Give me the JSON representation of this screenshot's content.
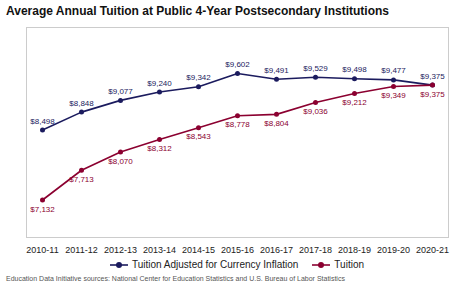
{
  "chart_data": {
    "type": "line",
    "title": "Average Annual Tuition at Public 4-Year Postsecondary Institutions",
    "categories": [
      "2010-11",
      "2011-12",
      "2012-13",
      "2013-14",
      "2014-15",
      "2015-16",
      "2016-17",
      "2017-18",
      "2018-19",
      "2019-20",
      "2020-21"
    ],
    "series": [
      {
        "name": "Tuition Adjusted for Currency Inflation",
        "color": "#1b1b5e",
        "values": [
          8498,
          8848,
          9077,
          9240,
          9342,
          9602,
          9491,
          9529,
          9498,
          9477,
          9375
        ],
        "value_labels": [
          "$8,498",
          "$8,848",
          "$9,077",
          "$9,240",
          "$9,342",
          "$9,602",
          "$9,491",
          "$9,529",
          "$9,498",
          "$9,477",
          "$9,375"
        ]
      },
      {
        "name": "Tuition",
        "color": "#8b0030",
        "values": [
          7132,
          7713,
          8070,
          8312,
          8543,
          8778,
          8804,
          9036,
          9212,
          9349,
          9375
        ],
        "value_labels": [
          "$7,132",
          "$7,713",
          "$8,070",
          "$8,312",
          "$8,543",
          "$8,778",
          "$8,804",
          "$9,036",
          "$9,212",
          "$9,349",
          "$9,375"
        ]
      }
    ],
    "ylim": [
      6400,
      10500
    ],
    "tick_labels": "x",
    "data_labels": true,
    "marker": "circle",
    "legend": "bottom",
    "annotations": [
      "Education Data Initiative sources: National Center for Education Statistics and U.S. Bureau of Labor Statistics"
    ]
  }
}
